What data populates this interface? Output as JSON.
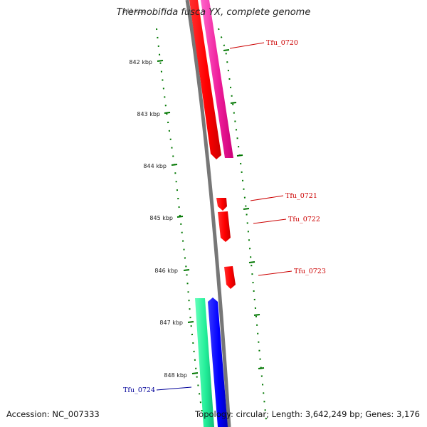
{
  "title": "Thermobifida fusca YX, complete genome",
  "ruler": {
    "top_faded_label": "841 kbp",
    "tick_labels": [
      "842 kbp",
      "843 kbp",
      "844 kbp",
      "845 kbp",
      "846 kbp",
      "847 kbp",
      "848 kbp"
    ]
  },
  "genes": [
    {
      "id": "Tfu_0720",
      "label": "Tfu_0720",
      "color": "#cc0000",
      "strand": "reverse"
    },
    {
      "id": "Tfu_0721",
      "label": "Tfu_0721",
      "color": "#cc0000",
      "strand": "reverse"
    },
    {
      "id": "Tfu_0722",
      "label": "Tfu_0722",
      "color": "#cc0000",
      "strand": "reverse"
    },
    {
      "id": "Tfu_0723",
      "label": "Tfu_0723",
      "color": "#cc0000",
      "strand": "reverse"
    },
    {
      "id": "Tfu_0724",
      "label": "Tfu_0724",
      "color": "#000099",
      "strand": "forward"
    }
  ],
  "feature_colors": {
    "cds_reverse": "#ff0000",
    "misc_reverse": "#ff1493",
    "cds_forward": "#0000ff",
    "misc_forward": "#00ee88",
    "backbone": "#888888",
    "ruler": "#007700"
  },
  "footer": {
    "accession": "Accession: NC_007333",
    "topology": "Topology: circular",
    "length": "Length: 3,642,249 bp",
    "genes": "Genes: 3,176"
  }
}
